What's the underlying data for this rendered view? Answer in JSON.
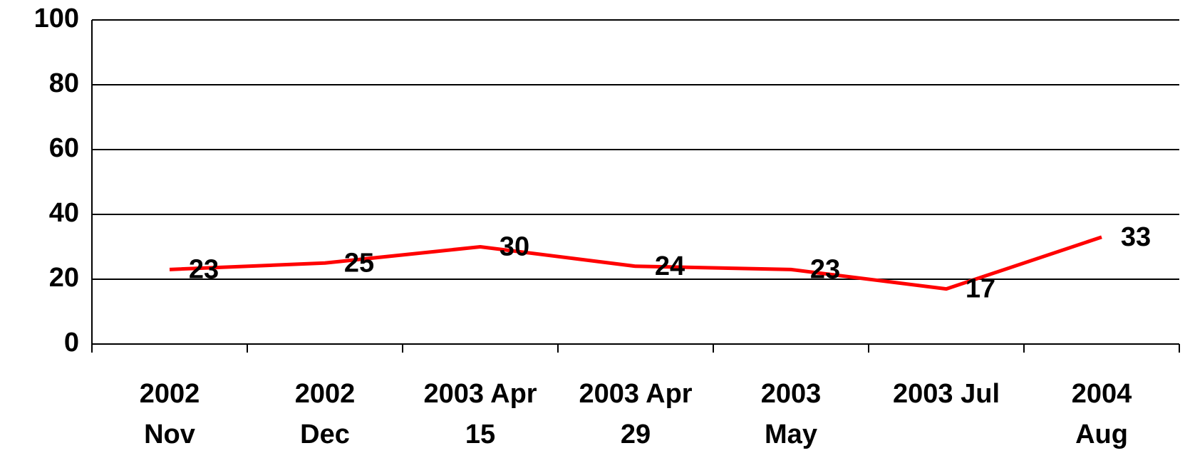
{
  "chart_data": {
    "type": "line",
    "categories": [
      "2002 Nov",
      "2002 Dec",
      "2003 Apr 15",
      "2003 Apr 29",
      "2003 May",
      "2003 Jul",
      "2004 Aug"
    ],
    "series": [
      {
        "color": "#ff0000",
        "values": [
          23,
          25,
          30,
          24,
          23,
          17,
          33
        ]
      }
    ],
    "ylim": [
      0,
      100
    ],
    "yticks": [
      0,
      20,
      40,
      60,
      80,
      100
    ],
    "grid": true
  }
}
